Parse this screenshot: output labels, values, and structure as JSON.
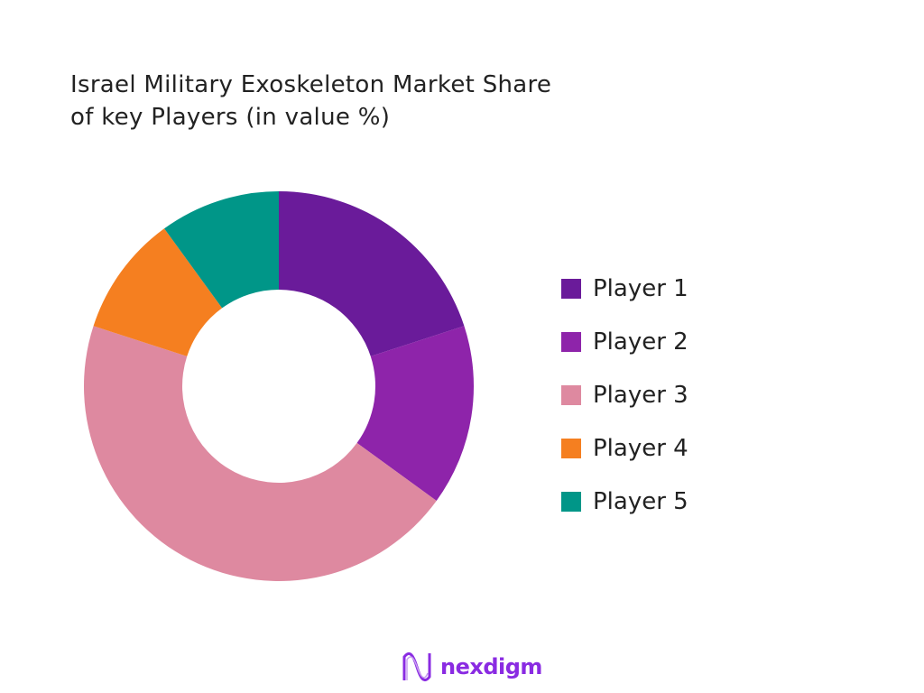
{
  "chart_data": {
    "type": "pie",
    "variant": "donut",
    "title": "Israel Military Exoskeleton Market Share of key Players (in value %)",
    "title_lines": [
      "Israel Military Exoskeleton Market Share",
      "of key Players (in value %)"
    ],
    "categories": [
      "Player 1",
      "Player 2",
      "Player 3",
      "Player 4",
      "Player 5"
    ],
    "values": [
      20,
      15,
      45,
      10,
      10
    ],
    "colors": [
      "#6a1b9a",
      "#8e24aa",
      "#de89a0",
      "#f57f20",
      "#009688"
    ],
    "legend_position": "right",
    "data_labels": false
  },
  "logo": {
    "text": "nexdigm",
    "color": "#8a2be2"
  }
}
